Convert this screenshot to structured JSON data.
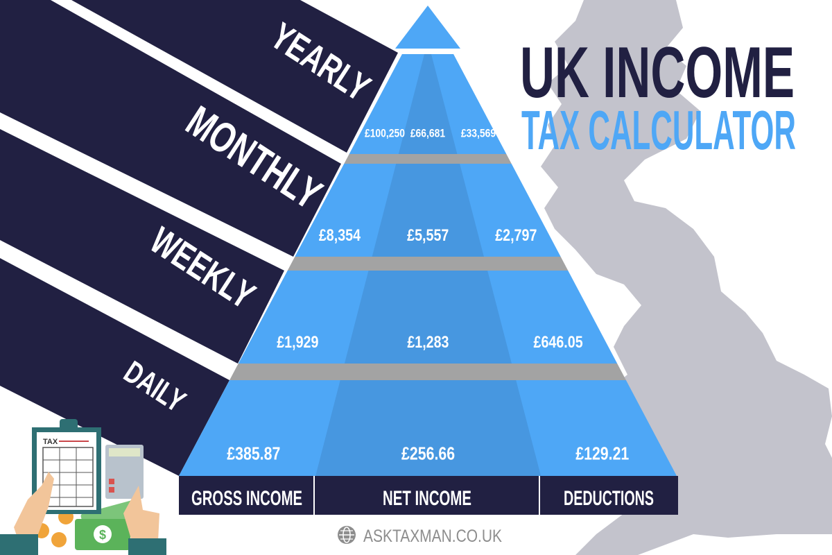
{
  "title": {
    "line1": "UK INCOME",
    "line2": "TAX CALCULATOR"
  },
  "periods": [
    "YEARLY",
    "MONTHLY",
    "WEEKLY",
    "DAILY"
  ],
  "columns": [
    "GROSS INCOME",
    "NET INCOME",
    "DEDUCTIONS"
  ],
  "rows": [
    {
      "period": "YEARLY",
      "gross": "£100,250",
      "net": "£66,681",
      "deductions": "£33,569"
    },
    {
      "period": "MONTHLY",
      "gross": "£8,354",
      "net": "£5,557",
      "deductions": "£2,797"
    },
    {
      "period": "WEEKLY",
      "gross": "£1,929",
      "net": "£1,283",
      "deductions": "£646.05"
    },
    {
      "period": "DAILY",
      "gross": "£385.87",
      "net": "£256.66",
      "deductions": "£129.21"
    }
  ],
  "footer": {
    "website": "ASKTAXMAN.CO.UK",
    "icon": "globe-icon"
  },
  "illustration": {
    "clipboard_label": "TAX",
    "icons": [
      "clipboard-icon",
      "calculator-icon",
      "cash-icon",
      "coin-icon",
      "hand-icon"
    ]
  },
  "colors": {
    "navy": "#212042",
    "blue": "#4ea7f6",
    "blue_dark": "#4797e0",
    "gray": "#a3a3a3",
    "map": "#c3c3cc"
  }
}
